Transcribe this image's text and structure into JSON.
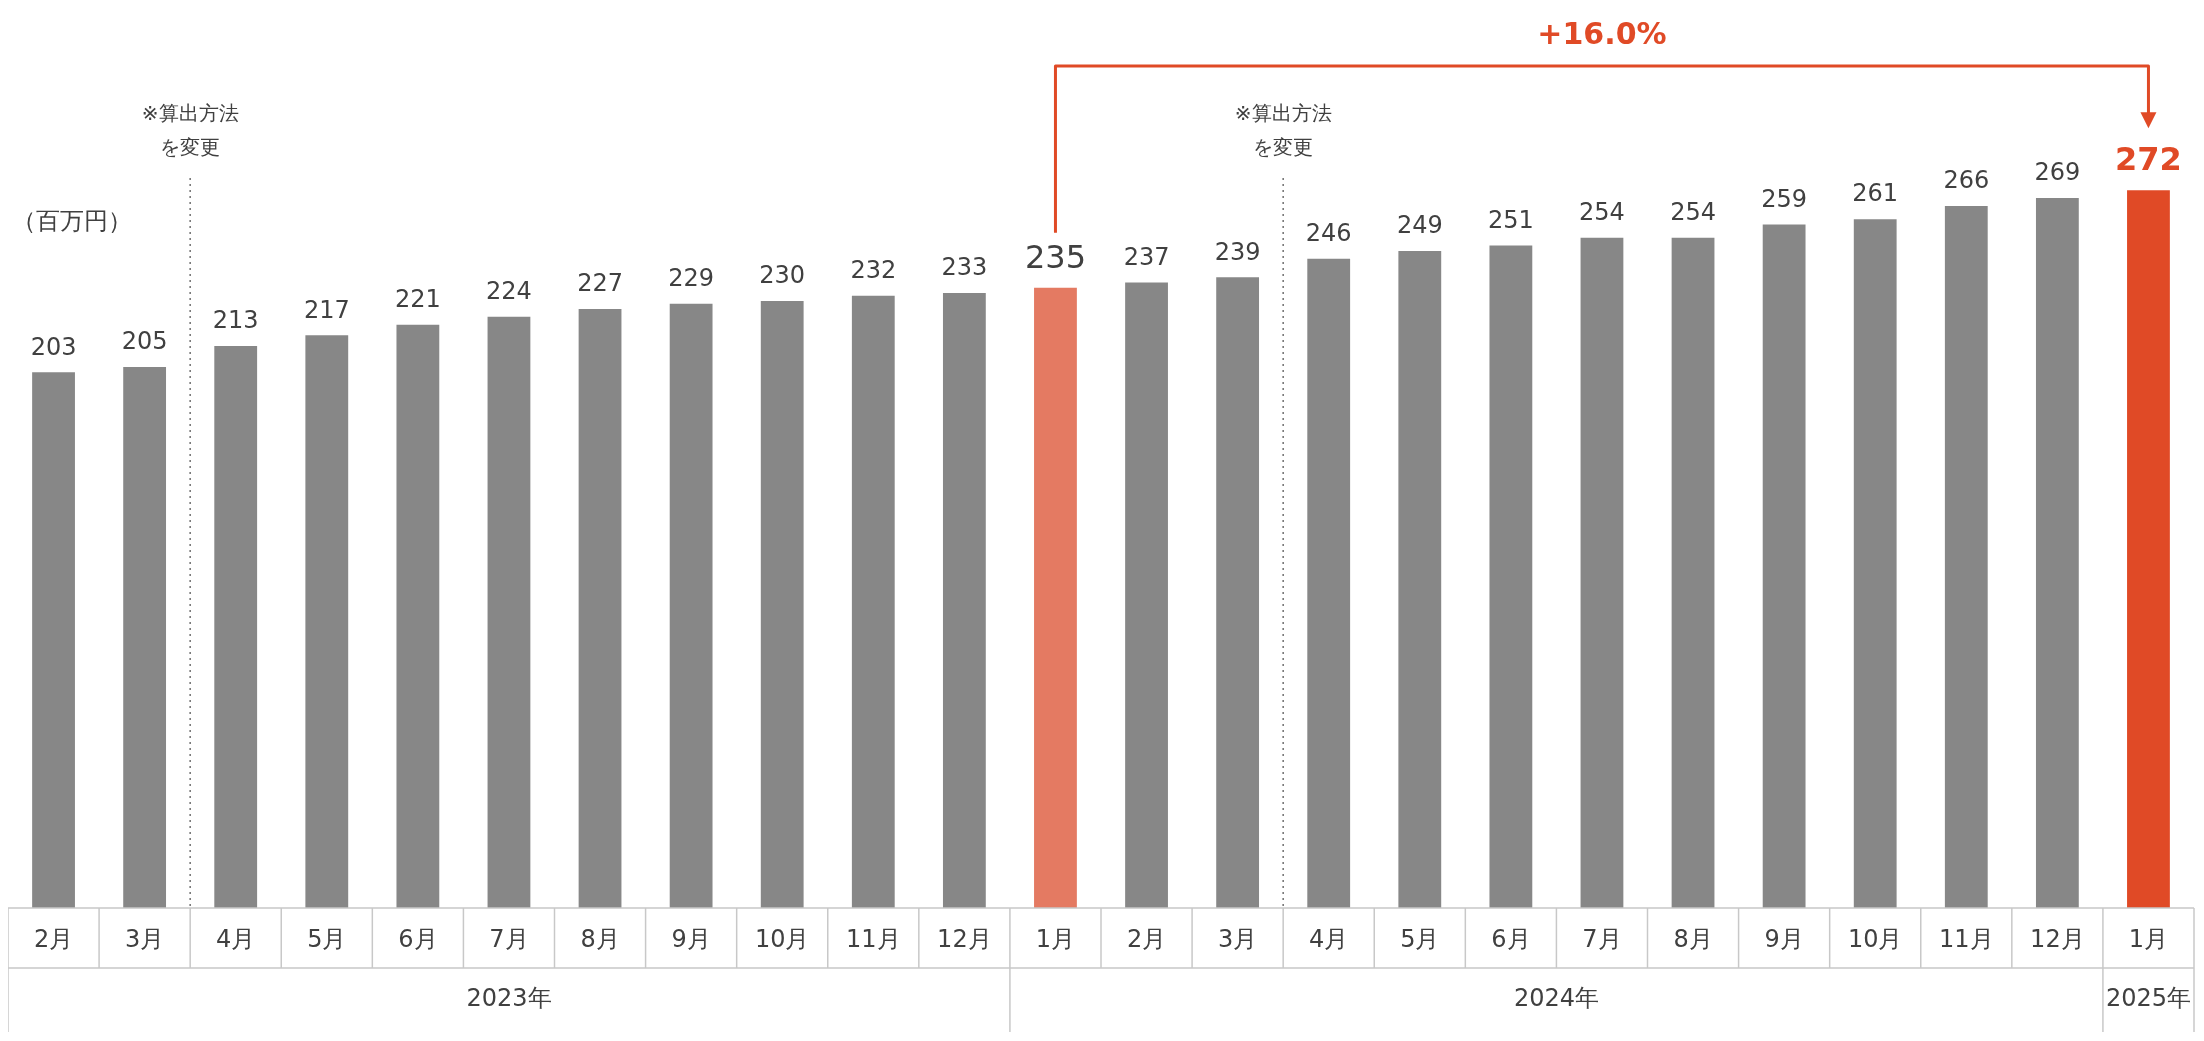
{
  "chart_data": {
    "type": "bar",
    "ylabel": "（百万円）",
    "categories": [
      "2月",
      "3月",
      "4月",
      "5月",
      "6月",
      "7月",
      "8月",
      "9月",
      "10月",
      "11月",
      "12月",
      "1月",
      "2月",
      "3月",
      "4月",
      "5月",
      "6月",
      "7月",
      "8月",
      "9月",
      "10月",
      "11月",
      "12月",
      "1月"
    ],
    "values": [
      203,
      205,
      213,
      217,
      221,
      224,
      227,
      229,
      230,
      232,
      233,
      235,
      237,
      239,
      246,
      249,
      251,
      254,
      254,
      259,
      261,
      266,
      269,
      272
    ],
    "colors": [
      "#878787",
      "#878787",
      "#878787",
      "#878787",
      "#878787",
      "#878787",
      "#878787",
      "#878787",
      "#878787",
      "#878787",
      "#878787",
      "#e47a62",
      "#878787",
      "#878787",
      "#878787",
      "#878787",
      "#878787",
      "#878787",
      "#878787",
      "#878787",
      "#878787",
      "#878787",
      "#878787",
      "#e04a26"
    ],
    "data_labels": true,
    "annotations": [
      "+16.0%",
      "※算出方法を変更",
      "※算出方法を変更",
      "2023年",
      "2024年",
      "2025年"
    ],
    "legend": false,
    "grid": false
  }
}
